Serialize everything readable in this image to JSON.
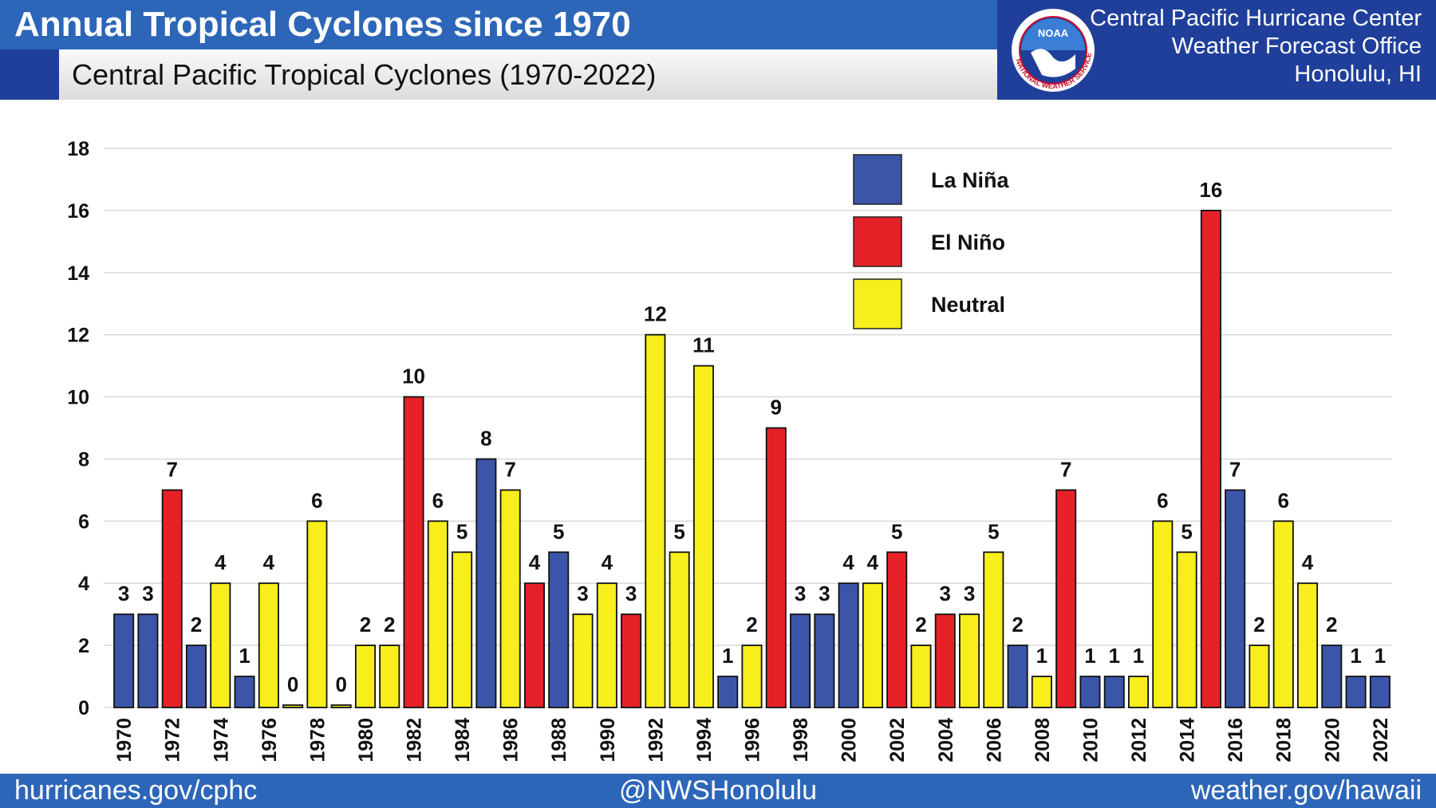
{
  "header": {
    "title": "Annual Tropical Cyclones since 1970",
    "subtitle": "Central Pacific Tropical Cyclones (1970-2022)",
    "office_line1": "Central Pacific Hurricane Center",
    "office_line2": "Weather Forecast Office",
    "office_line3": "Honolulu, HI",
    "logo_text": "NOAA",
    "logo_ring_text": "NATIONAL WEATHER SERVICE"
  },
  "footer": {
    "left": "hurricanes.gov/cphc",
    "center": "@NWSHonolulu",
    "right": "weather.gov/hawaii"
  },
  "colors": {
    "banner": "#2d66b8",
    "panel": "#1f3f9a",
    "la_nina": "#3b55a8",
    "el_nino": "#e62128",
    "neutral": "#f7ee1b"
  },
  "chart_data": {
    "type": "bar",
    "title": "Central Pacific Tropical Cyclones (1970-2022)",
    "xlabel": "",
    "ylabel": "",
    "ylim": [
      0,
      18
    ],
    "yticks": [
      0,
      2,
      4,
      6,
      8,
      10,
      12,
      14,
      16,
      18
    ],
    "grid": true,
    "legend_position": "top-center",
    "legend": [
      {
        "key": "L",
        "label": "La Niña",
        "color": "#3b55a8"
      },
      {
        "key": "E",
        "label": "El Niño",
        "color": "#e62128"
      },
      {
        "key": "N",
        "label": "Neutral",
        "color": "#f7ee1b"
      }
    ],
    "categories": [
      "1970",
      "1971",
      "1972",
      "1973",
      "1974",
      "1975",
      "1976",
      "1977",
      "1978",
      "1979",
      "1980",
      "1981",
      "1982",
      "1983",
      "1984",
      "1985",
      "1986",
      "1987",
      "1988",
      "1989",
      "1990",
      "1991",
      "1992",
      "1993",
      "1994",
      "1995",
      "1996",
      "1997",
      "1998",
      "1999",
      "2000",
      "2001",
      "2002",
      "2003",
      "2004",
      "2005",
      "2006",
      "2007",
      "2008",
      "2009",
      "2010",
      "2011",
      "2012",
      "2013",
      "2014",
      "2015",
      "2016",
      "2017",
      "2018",
      "2019",
      "2020",
      "2021",
      "2022"
    ],
    "xtick_labels": [
      "1970",
      "1972",
      "1974",
      "1976",
      "1978",
      "1980",
      "1982",
      "1984",
      "1986",
      "1988",
      "1990",
      "1992",
      "1994",
      "1996",
      "1998",
      "2000",
      "2002",
      "2004",
      "2006",
      "2008",
      "2010",
      "2012",
      "2014",
      "2016",
      "2018",
      "2020",
      "2022"
    ],
    "values": [
      3,
      3,
      7,
      2,
      4,
      1,
      4,
      0,
      6,
      0,
      2,
      2,
      10,
      6,
      5,
      8,
      7,
      4,
      5,
      3,
      4,
      3,
      12,
      5,
      11,
      1,
      2,
      9,
      3,
      3,
      4,
      4,
      5,
      2,
      3,
      3,
      5,
      2,
      1,
      7,
      1,
      1,
      1,
      6,
      5,
      16,
      7,
      2,
      6,
      4,
      2,
      1,
      1
    ],
    "phase": [
      "L",
      "L",
      "E",
      "L",
      "N",
      "L",
      "N",
      "N",
      "N",
      "N",
      "N",
      "N",
      "E",
      "N",
      "N",
      "L",
      "N",
      "E",
      "L",
      "N",
      "N",
      "E",
      "N",
      "N",
      "N",
      "L",
      "N",
      "E",
      "L",
      "L",
      "L",
      "N",
      "E",
      "N",
      "E",
      "N",
      "N",
      "L",
      "N",
      "E",
      "L",
      "L",
      "N",
      "N",
      "N",
      "E",
      "L",
      "N",
      "N",
      "N",
      "L",
      "L",
      "L"
    ]
  }
}
